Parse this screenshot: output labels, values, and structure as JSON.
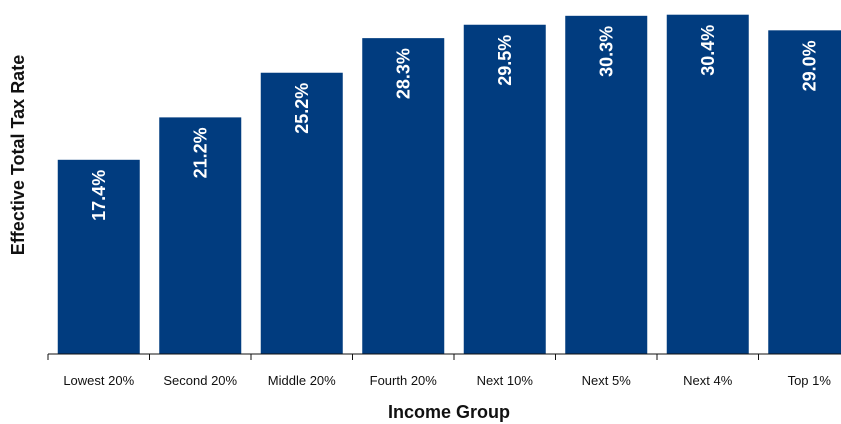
{
  "chart_data": {
    "type": "bar",
    "title": "",
    "xlabel": "Income Group",
    "ylabel": "Effective Total Tax Rate",
    "categories": [
      "Lowest 20%",
      "Second 20%",
      "Middle 20%",
      "Fourth 20%",
      "Next 10%",
      "Next 5%",
      "Next 4%",
      "Top 1%"
    ],
    "values": [
      17.4,
      21.2,
      25.2,
      28.3,
      29.5,
      30.3,
      30.4,
      29.0
    ],
    "value_labels": [
      "17.4%",
      "21.2%",
      "25.2%",
      "28.3%",
      "29.5%",
      "30.3%",
      "30.4%",
      "29.0%"
    ],
    "ylim": [
      0,
      31
    ],
    "grid": false,
    "legend": "none",
    "bar_color": "#013C7F",
    "label_color": "#FFFFFF"
  }
}
